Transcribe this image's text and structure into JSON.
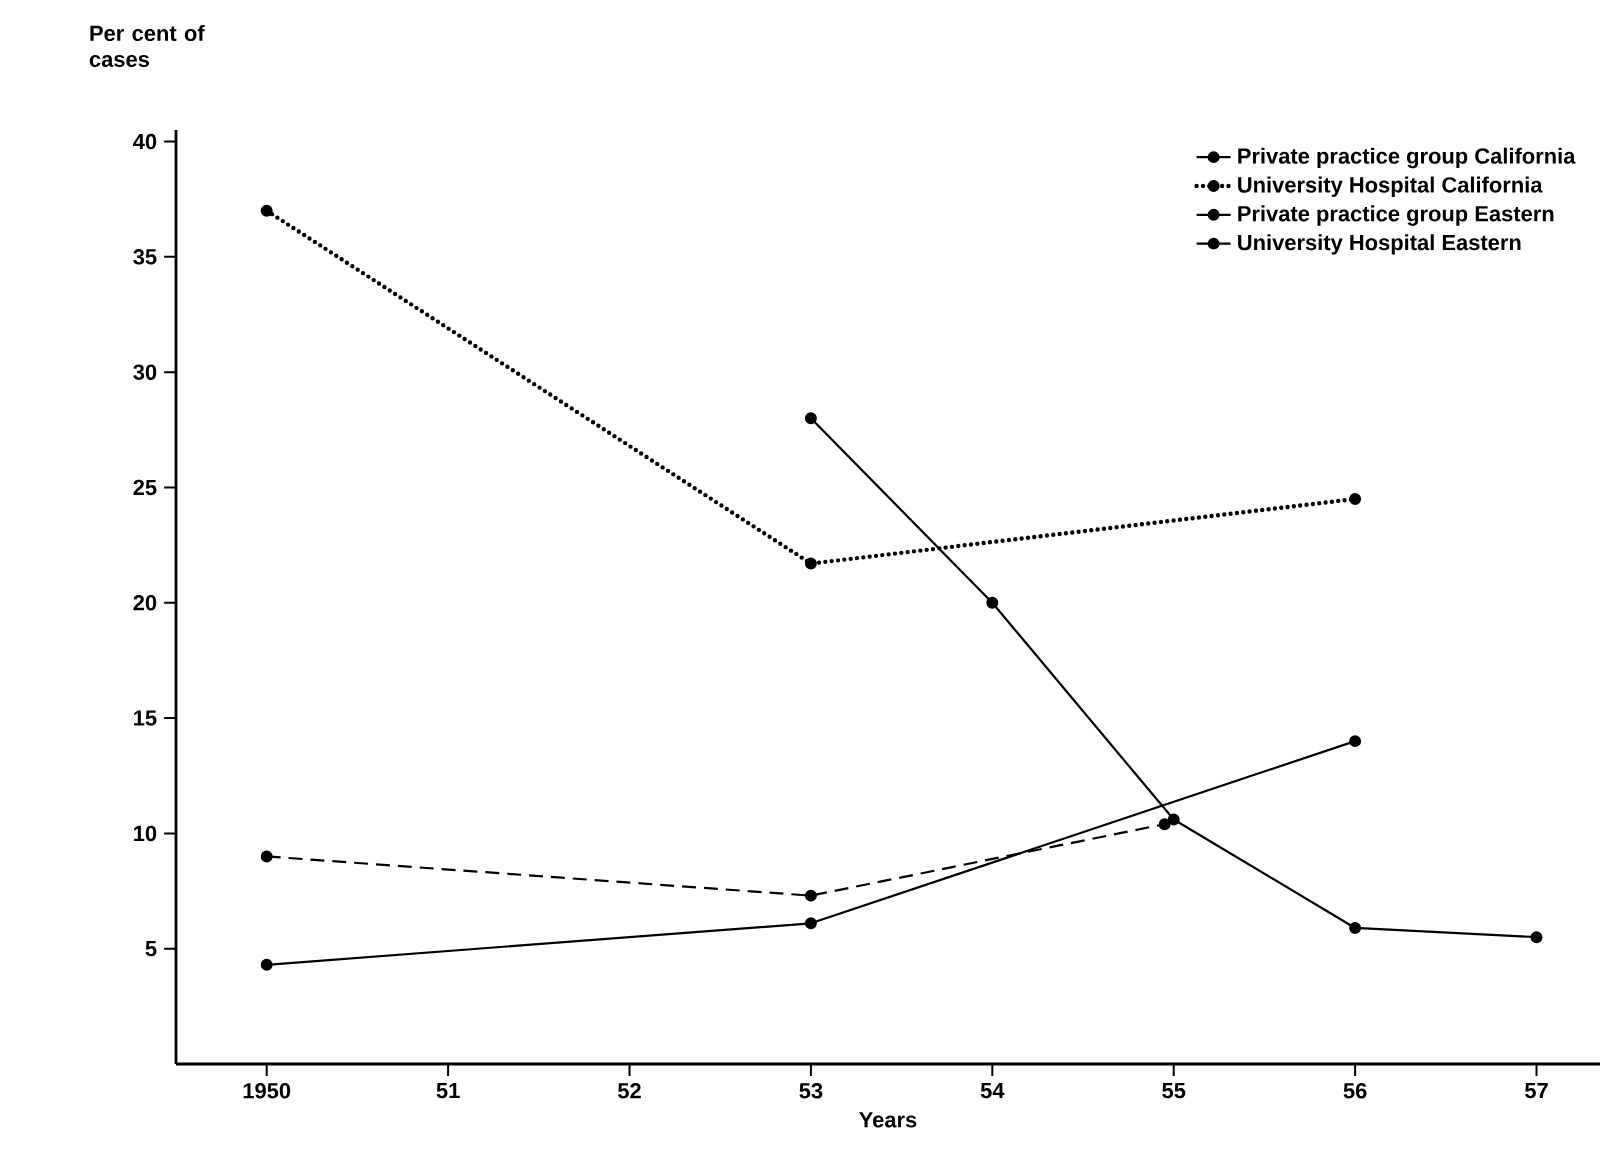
{
  "chart_data": {
    "type": "line",
    "ylabel": "Per cent of cases",
    "xlabel": "Years",
    "xlim": [
      1949.5,
      1957.35
    ],
    "ylim": [
      0,
      40.5
    ],
    "xticks": [
      1950,
      {
        "value": 1951,
        "label": "51"
      },
      {
        "value": 1952,
        "label": "52"
      },
      {
        "value": 1953,
        "label": "53"
      },
      {
        "value": 1954,
        "label": "54"
      },
      {
        "value": 1955,
        "label": "55"
      },
      {
        "value": 1956,
        "label": "56"
      },
      {
        "value": 1957,
        "label": "57"
      }
    ],
    "yticks": [
      5,
      10,
      15,
      20,
      25,
      30,
      35,
      40
    ],
    "grid": false,
    "legend": "top right",
    "marker": "circle",
    "series": [
      {
        "name": "Private practice group California",
        "color": "#000000",
        "line_style": "solid",
        "x": [
          1953,
          1954,
          1955,
          1956,
          1957
        ],
        "values": [
          28,
          20,
          10.6,
          5.9,
          5.5
        ]
      },
      {
        "name": "University Hospital California",
        "color": "#000000",
        "line_style": "dotted",
        "x": [
          1950,
          1953,
          1956
        ],
        "values": [
          37,
          21.7,
          24.5
        ]
      },
      {
        "name": "Private practice group Eastern",
        "color": "#000000",
        "line_style": "dashed",
        "x": [
          1950,
          1953,
          1954.95
        ],
        "values": [
          9,
          7.3,
          10.4
        ]
      },
      {
        "name": "University Hospital Eastern",
        "color": "#000000",
        "line_style": "solid",
        "x": [
          1950,
          1953,
          1956
        ],
        "values": [
          4.3,
          6.1,
          14
        ]
      }
    ]
  }
}
